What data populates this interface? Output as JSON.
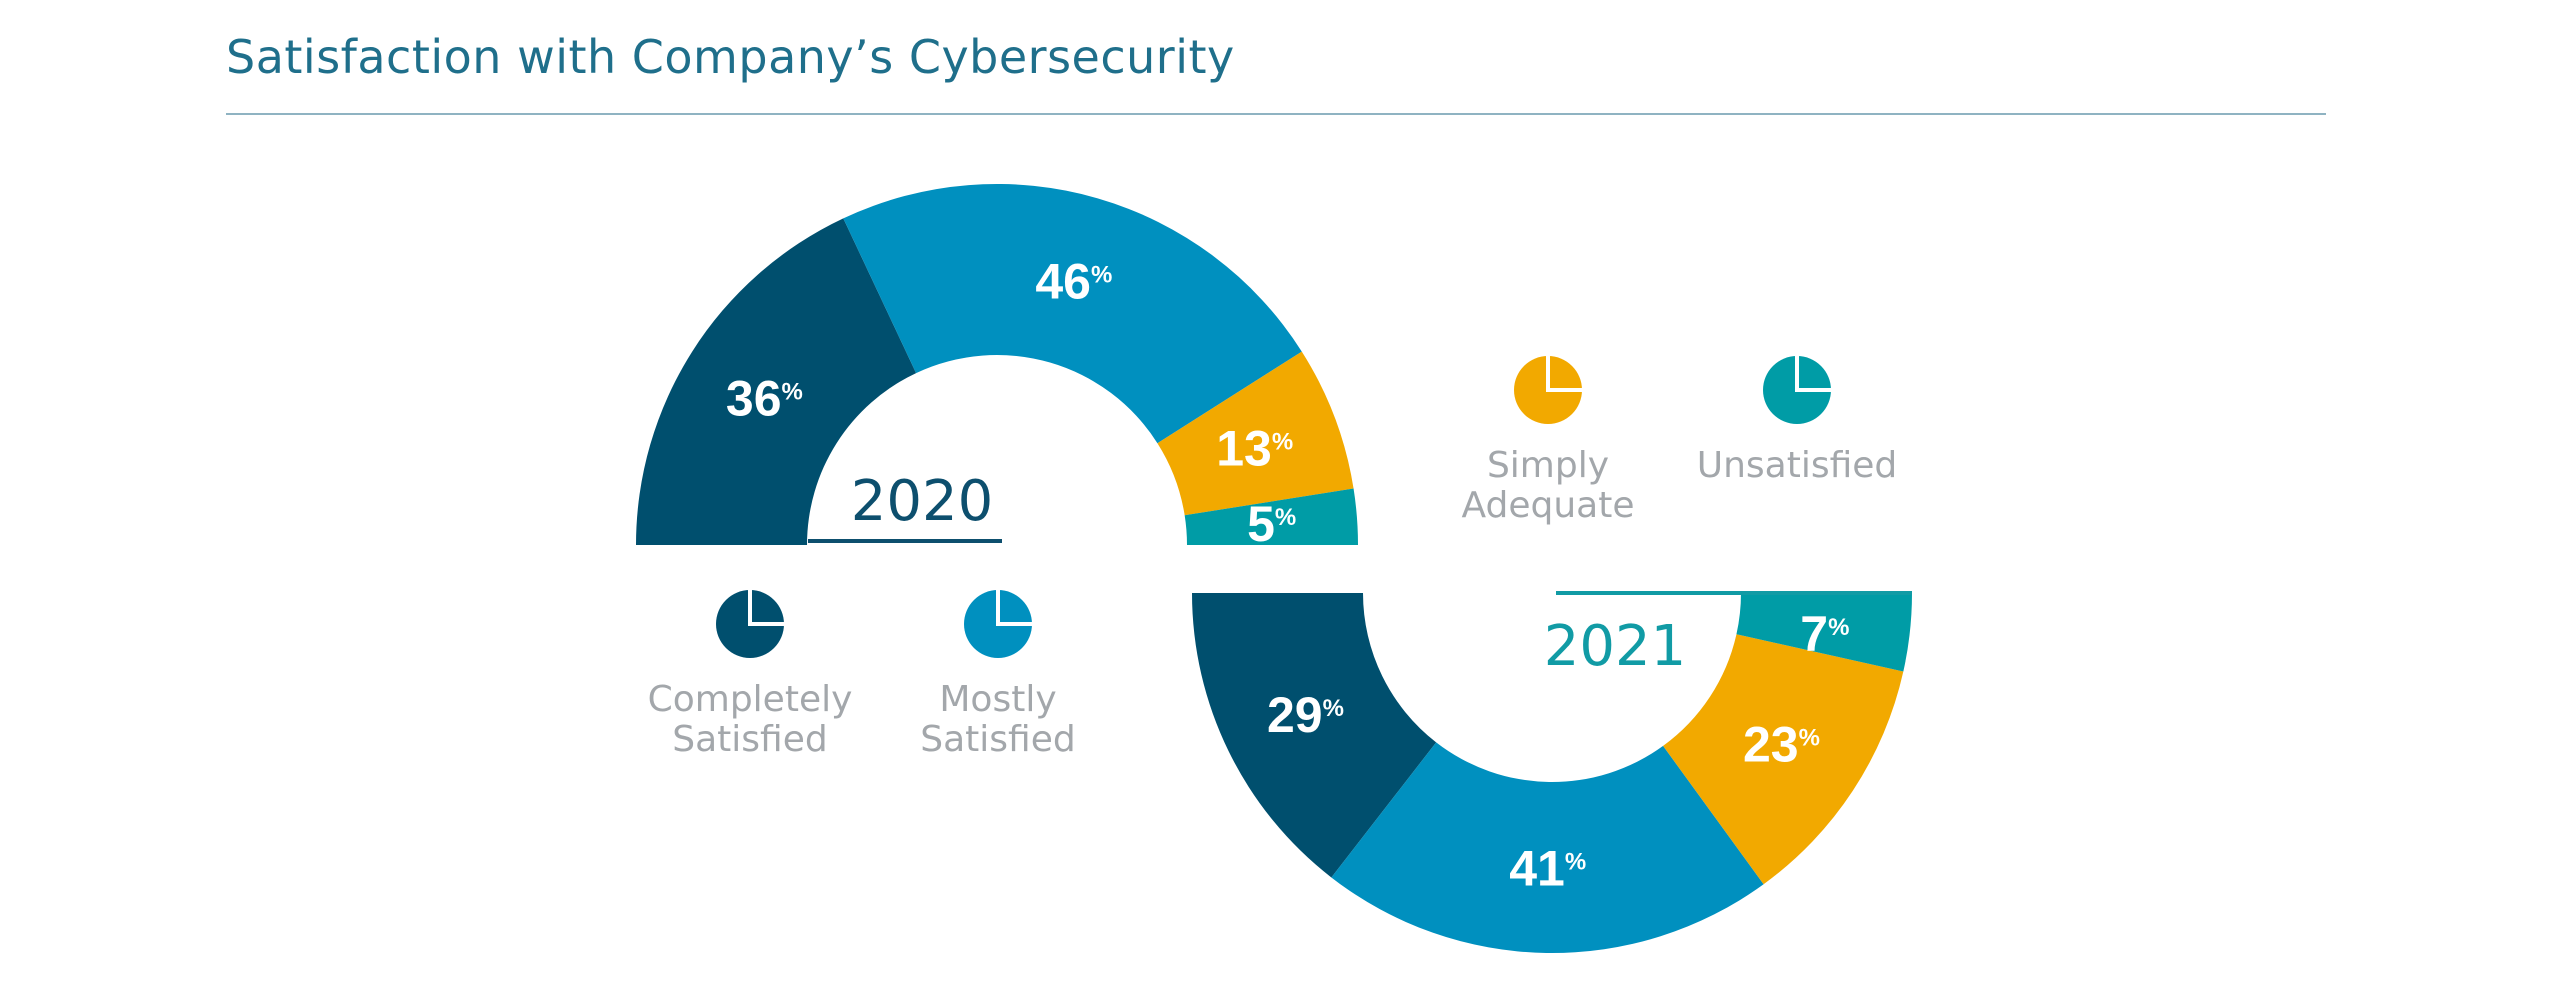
{
  "chart_data": [
    {
      "type": "pie",
      "title": "Satisfaction with Company’s Cybersecurity",
      "label": "2020",
      "categories": [
        "Completely Satisfied",
        "Mostly Satisfied",
        "Simply Adequate",
        "Unsatisfied"
      ],
      "values": [
        36,
        46,
        13,
        5
      ],
      "value_labels": [
        "36%",
        "46%",
        "13%",
        "5%"
      ],
      "shape": "half-donut, upper"
    },
    {
      "type": "pie",
      "label": "2021",
      "categories": [
        "Completely Satisfied",
        "Mostly Satisfied",
        "Simply Adequate",
        "Unsatisfied"
      ],
      "values": [
        29,
        41,
        23,
        7
      ],
      "value_labels": [
        "29%",
        "41%",
        "23%",
        "7%"
      ],
      "shape": "half-donut, lower"
    }
  ],
  "title": "Satisfaction with Company’s Cybersecurity",
  "legend": [
    {
      "line1": "Completely",
      "line2": "Satisfied",
      "color": "#004f6e",
      "icon": "pie-icon"
    },
    {
      "line1": "Mostly",
      "line2": "Satisfied",
      "color": "#0090bf",
      "icon": "pie-icon"
    },
    {
      "line1": "Simply",
      "line2": "Adequate",
      "color": "#f2a900",
      "icon": "pie-icon"
    },
    {
      "line1": "Unsatisfied",
      "line2": "",
      "color": "#009ca6",
      "icon": "pie-icon"
    }
  ],
  "year_colors": [
    "#0d4f6e",
    "#119ba5"
  ]
}
